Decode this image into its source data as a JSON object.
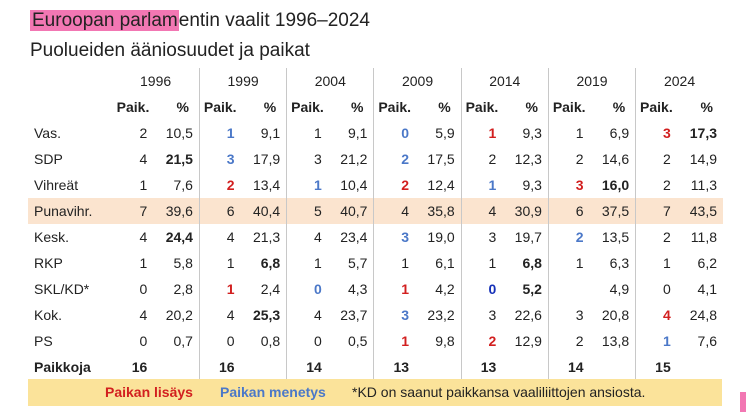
{
  "title_highlight": "Euroopan parlam",
  "title_rest": "entin vaalit 1996–2024",
  "subtitle": "Puolueiden ääniosuudet ja paikat",
  "years": [
    "1996",
    "1999",
    "2004",
    "2009",
    "2014",
    "2019",
    "2024"
  ],
  "col_seats": "Paik.",
  "col_pct": "%",
  "rows": [
    {
      "label": "Vas.",
      "cells": [
        [
          "2",
          "",
          "10,5",
          ""
        ],
        [
          "1",
          "blue",
          "9,1",
          ""
        ],
        [
          "1",
          "",
          "9,1",
          ""
        ],
        [
          "0",
          "blue",
          "5,9",
          ""
        ],
        [
          "1",
          "red",
          "9,3",
          ""
        ],
        [
          "1",
          "",
          "6,9",
          ""
        ],
        [
          "3",
          "red",
          "17,3",
          "bold"
        ]
      ]
    },
    {
      "label": "SDP",
      "cells": [
        [
          "4",
          "",
          "21,5",
          "bold"
        ],
        [
          "3",
          "blue",
          "17,9",
          ""
        ],
        [
          "3",
          "",
          "21,2",
          ""
        ],
        [
          "2",
          "blue",
          "17,5",
          ""
        ],
        [
          "2",
          "",
          "12,3",
          ""
        ],
        [
          "2",
          "",
          "14,6",
          ""
        ],
        [
          "2",
          "",
          "14,9",
          ""
        ]
      ]
    },
    {
      "label": "Vihreät",
      "cells": [
        [
          "1",
          "",
          "7,6",
          ""
        ],
        [
          "2",
          "red",
          "13,4",
          ""
        ],
        [
          "1",
          "blue",
          "10,4",
          ""
        ],
        [
          "2",
          "red",
          "12,4",
          ""
        ],
        [
          "1",
          "blue",
          "9,3",
          ""
        ],
        [
          "3",
          "red",
          "16,0",
          "bold"
        ],
        [
          "2",
          "",
          "11,3",
          ""
        ]
      ]
    },
    {
      "label": "Punavihr.",
      "highlight": true,
      "cells": [
        [
          "7",
          "",
          "39,6",
          ""
        ],
        [
          "6",
          "",
          "40,4",
          ""
        ],
        [
          "5",
          "",
          "40,7",
          ""
        ],
        [
          "4",
          "",
          "35,8",
          ""
        ],
        [
          "4",
          "",
          "30,9",
          ""
        ],
        [
          "6",
          "",
          "37,5",
          ""
        ],
        [
          "7",
          "",
          "43,5",
          ""
        ]
      ]
    },
    {
      "label": "Kesk.",
      "cells": [
        [
          "4",
          "",
          "24,4",
          "bold"
        ],
        [
          "4",
          "",
          "21,3",
          ""
        ],
        [
          "4",
          "",
          "23,4",
          ""
        ],
        [
          "3",
          "blue",
          "19,0",
          ""
        ],
        [
          "3",
          "",
          "19,7",
          ""
        ],
        [
          "2",
          "blue",
          "13,5",
          ""
        ],
        [
          "2",
          "",
          "11,8",
          ""
        ]
      ]
    },
    {
      "label": "RKP",
      "cells": [
        [
          "1",
          "",
          "5,8",
          ""
        ],
        [
          "1",
          "",
          "6,8",
          "bold"
        ],
        [
          "1",
          "",
          "5,7",
          ""
        ],
        [
          "1",
          "",
          "6,1",
          ""
        ],
        [
          "1",
          "",
          "6,8",
          "bold"
        ],
        [
          "1",
          "",
          "6,3",
          ""
        ],
        [
          "1",
          "",
          "6,2",
          ""
        ]
      ]
    },
    {
      "label": "SKL/KD*",
      "cells": [
        [
          "0",
          "",
          "2,8",
          ""
        ],
        [
          "1",
          "red",
          "2,4",
          ""
        ],
        [
          "0",
          "blue",
          "4,3",
          ""
        ],
        [
          "1",
          "red",
          "4,2",
          ""
        ],
        [
          "0",
          "dblue",
          "5,2",
          "bold"
        ],
        [
          "",
          "",
          "4,9",
          ""
        ],
        [
          "0",
          "",
          "4,1",
          ""
        ]
      ]
    },
    {
      "label": "Kok.",
      "cells": [
        [
          "4",
          "",
          "20,2",
          ""
        ],
        [
          "4",
          "",
          "25,3",
          "bold"
        ],
        [
          "4",
          "",
          "23,7",
          ""
        ],
        [
          "3",
          "blue",
          "23,2",
          ""
        ],
        [
          "3",
          "",
          "22,6",
          ""
        ],
        [
          "3",
          "",
          "20,8",
          ""
        ],
        [
          "4",
          "red",
          "24,8",
          ""
        ]
      ]
    },
    {
      "label": "PS",
      "cells": [
        [
          "0",
          "",
          "0,7",
          ""
        ],
        [
          "0",
          "",
          "0,8",
          ""
        ],
        [
          "0",
          "",
          "0,5",
          ""
        ],
        [
          "1",
          "red",
          "9,8",
          ""
        ],
        [
          "2",
          "red",
          "12,9",
          ""
        ],
        [
          "2",
          "",
          "13,8",
          ""
        ],
        [
          "1",
          "blue",
          "7,6",
          ""
        ]
      ]
    }
  ],
  "totals_label": "Paikkoja",
  "totals": [
    "16",
    "16",
    "14",
    "13",
    "13",
    "14",
    "15"
  ],
  "legend": {
    "added": "Paikan lisäys",
    "lost": "Paikan menetys",
    "note": "*KD on saanut paikkansa vaaliliittojen ansiosta."
  },
  "colors": {
    "title_highlight": "#f277b3",
    "seat_gain": "#d21f1f",
    "seat_loss": "#4b78c8",
    "seat_loss_dark": "#1530b8",
    "row_highlight": "#fbe4cf",
    "legend_bg": "#fbe39a"
  }
}
